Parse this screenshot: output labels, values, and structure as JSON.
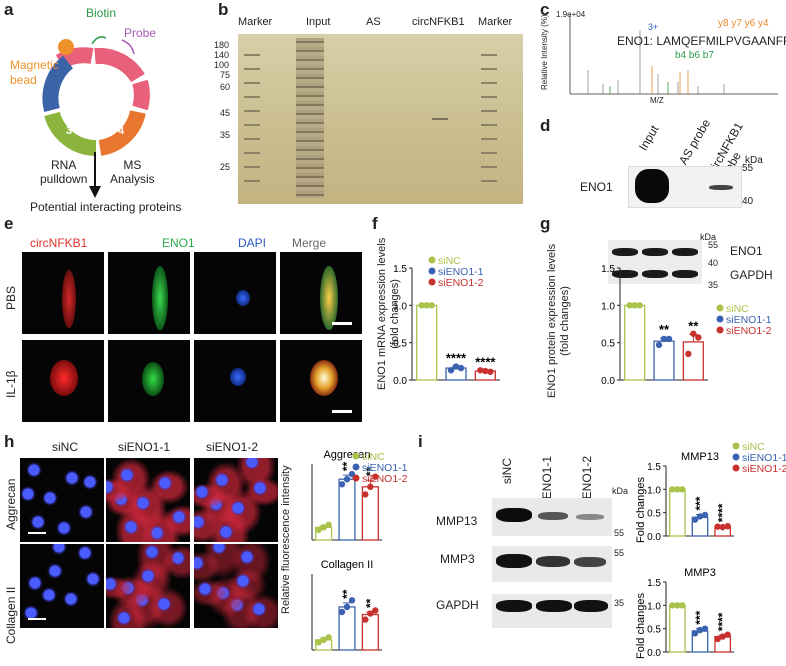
{
  "panels": {
    "a": "a",
    "b": "b",
    "c": "c",
    "d": "d",
    "e": "e",
    "f": "f",
    "g": "g",
    "h": "h",
    "i": "i"
  },
  "panel_a": {
    "biotin": "Biotin",
    "probe": "Probe",
    "bead": "Magnetic\nbead",
    "segments": [
      "1",
      "2",
      "3",
      "4",
      "5"
    ],
    "left": "RNA\npulldown",
    "right": "MS\nAnalysis",
    "result": "Potential interacting proteins",
    "colors": {
      "seg1": "#e8607a",
      "seg2": "#3b63a8",
      "seg3": "#8bb43c",
      "seg4": "#e8762f",
      "seg5": "#e8607a",
      "bead": "#f0922b",
      "biotin": "#2a9a4a",
      "probe": "#a45bb0"
    }
  },
  "panel_b": {
    "lanes": [
      "Marker",
      "Input",
      "AS",
      "circNFKB1",
      "Marker"
    ],
    "markers": [
      "180",
      "140",
      "100",
      "75",
      "60",
      "45",
      "35",
      "25"
    ]
  },
  "panel_c": {
    "intensity": "1.9e+04",
    "ylabel": "Relative Intensity (%)",
    "xlabel": "M/Z",
    "peptide": "ENO1: LAMQEFMILPVGAANFR",
    "ions_y": "y8 y7 y6  y4",
    "ions_b": "b4  b6  b7",
    "charge": "3+"
  },
  "panel_d": {
    "lanes": [
      "Input",
      "AS probe",
      "circNFKB1\nprobe"
    ],
    "kda": "kDa",
    "markers": [
      "55",
      "40"
    ],
    "protein": "ENO1"
  },
  "panel_e": {
    "cols": [
      "circNFKB1",
      "ENO1",
      "DAPI",
      "Merge"
    ],
    "rows": [
      "PBS",
      "IL-1β"
    ],
    "col_colors": [
      "#e0302a",
      "#2aa84a",
      "#2c57c8",
      "#666666"
    ]
  },
  "panel_f": {
    "ylabel": "ENO1 mRNA expression levels\n(fold changes)",
    "legend": [
      "siNC",
      "siENO1-1",
      "siENO1-2"
    ],
    "yticks": [
      "0.0",
      "0.5",
      "1.0",
      "1.5"
    ],
    "stars": [
      "****",
      "****"
    ]
  },
  "panel_g": {
    "ylabel": "ENO1 protein expression levels\n(fold changes)",
    "legend": [
      "siNC",
      "siENO1-1",
      "siENO1-2"
    ],
    "yticks": [
      "0.0",
      "0.5",
      "1.0",
      "1.5"
    ],
    "stars": [
      "**",
      "**"
    ],
    "blot": {
      "kda": "kDa",
      "markers": [
        "55",
        "40",
        "35"
      ],
      "labels": [
        "ENO1",
        "GAPDH"
      ]
    }
  },
  "panel_h": {
    "cols": [
      "siNC",
      "siENO1-1",
      "siENO1-2"
    ],
    "rows": [
      "Aggrecan",
      "Collagen II"
    ],
    "ylabel": "Relative fluorescence intensity",
    "titles": [
      "Aggrecan",
      "Collagen II"
    ],
    "legend": [
      "siNC",
      "siENO1-1",
      "siENO1-2"
    ],
    "stars": [
      "**",
      "**"
    ]
  },
  "panel_i": {
    "lanes": [
      "siNC",
      "siENO1-1",
      "siENO1-2"
    ],
    "kda": "kDa",
    "rows": [
      "MMP13",
      "MMP3",
      "GAPDH"
    ],
    "markers": [
      "55",
      "55",
      "35"
    ],
    "titles": [
      "MMP13",
      "MMP3"
    ],
    "ylabel": "Fold changes",
    "yticks": [
      "0.0",
      "0.5",
      "1.0",
      "1.5"
    ],
    "legend": [
      "siNC",
      "siENO1-1",
      "siENO1-2"
    ],
    "stars": [
      "***",
      "****"
    ]
  },
  "colors": {
    "siNC": "#a9c34a",
    "siENO1_1": "#3a62b0",
    "siENO1_2": "#c8312e"
  },
  "chart_data": [
    {
      "type": "bar",
      "title": "",
      "ylabel": "ENO1 mRNA expression levels (fold changes)",
      "categories": [
        "siNC",
        "siENO1-1",
        "siENO1-2"
      ],
      "values": [
        1.0,
        0.16,
        0.12
      ],
      "points": [
        [
          1.0,
          1.0,
          1.0
        ],
        [
          0.13,
          0.18,
          0.16
        ],
        [
          0.13,
          0.12,
          0.11
        ]
      ],
      "errors": [
        0,
        0.02,
        0.01
      ],
      "ylim": [
        0,
        1.5
      ],
      "annotations": [
        "",
        "****",
        "****"
      ]
    },
    {
      "type": "bar",
      "title": "",
      "ylabel": "ENO1 protein expression levels (fold changes)",
      "categories": [
        "siNC",
        "siENO1-1",
        "siENO1-2"
      ],
      "values": [
        1.0,
        0.52,
        0.51
      ],
      "points": [
        [
          1.0,
          1.0,
          1.0
        ],
        [
          0.47,
          0.55,
          0.55
        ],
        [
          0.35,
          0.62,
          0.57
        ]
      ],
      "errors": [
        0,
        0.04,
        0.1
      ],
      "ylim": [
        0,
        1.5
      ],
      "annotations": [
        "",
        "**",
        "**"
      ]
    },
    {
      "type": "bar",
      "title": "Aggrecan",
      "ylabel": "Relative fluorescence intensity",
      "categories": [
        "siNC",
        "siENO1-1",
        "siENO1-2"
      ],
      "values": [
        0.25,
        1.2,
        1.05
      ],
      "points": [
        [
          0.2,
          0.25,
          0.3
        ],
        [
          1.1,
          1.2,
          1.3
        ],
        [
          0.9,
          1.05,
          1.25
        ]
      ],
      "errors": [
        0.04,
        0.08,
        0.13
      ],
      "ylim": [
        0,
        1.5
      ],
      "annotations": [
        "",
        "**",
        "**"
      ]
    },
    {
      "type": "bar",
      "title": "Collagen II",
      "ylabel": "Relative fluorescence intensity",
      "categories": [
        "siNC",
        "siENO1-1",
        "siENO1-2"
      ],
      "values": [
        0.2,
        0.85,
        0.7
      ],
      "points": [
        [
          0.15,
          0.2,
          0.25
        ],
        [
          0.75,
          0.85,
          0.98
        ],
        [
          0.6,
          0.72,
          0.78
        ]
      ],
      "errors": [
        0.04,
        0.08,
        0.05
      ],
      "ylim": [
        0,
        1.5
      ],
      "annotations": [
        "",
        "**",
        "**"
      ]
    },
    {
      "type": "bar",
      "title": "MMP13",
      "ylabel": "Fold changes",
      "categories": [
        "siNC",
        "siENO1-1",
        "siENO1-2"
      ],
      "values": [
        1.0,
        0.4,
        0.2
      ],
      "points": [
        [
          1.0,
          1.0,
          1.0
        ],
        [
          0.35,
          0.42,
          0.45
        ],
        [
          0.2,
          0.19,
          0.21
        ]
      ],
      "errors": [
        0,
        0.06,
        0.01
      ],
      "ylim": [
        0,
        1.5
      ],
      "annotations": [
        "",
        "***",
        "****"
      ]
    },
    {
      "type": "bar",
      "title": "MMP3",
      "ylabel": "Fold changes",
      "categories": [
        "siNC",
        "siENO1-1",
        "siENO1-2"
      ],
      "values": [
        1.0,
        0.45,
        0.33
      ],
      "points": [
        [
          1.0,
          1.0,
          1.0
        ],
        [
          0.4,
          0.47,
          0.5
        ],
        [
          0.28,
          0.33,
          0.37
        ]
      ],
      "errors": [
        0,
        0.05,
        0.03
      ],
      "ylim": [
        0,
        1.5
      ],
      "annotations": [
        "",
        "***",
        "****"
      ]
    }
  ]
}
